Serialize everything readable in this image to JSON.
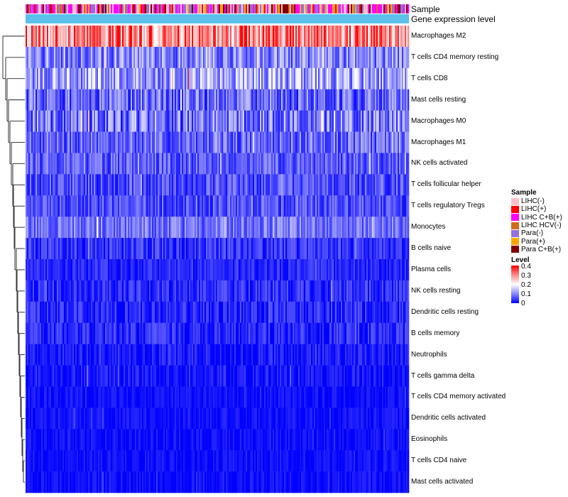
{
  "chart_data": {
    "type": "heatmap",
    "title": "",
    "annotation_rows": [
      "Sample",
      "Gene expression level"
    ],
    "rows": [
      "Macrophages M2",
      "T cells CD4 memory resting",
      "T cells CD8",
      "Mast cells resting",
      "Macrophages M0",
      "Macrophages M1",
      "NK cells activated",
      "T cells follicular helper",
      "T cells regulatory  Tregs",
      "Monocytes",
      "B cells naive",
      "Plasma cells",
      "NK cells resting",
      "Dendritic cells resting",
      "B cells memory",
      "Neutrophils",
      "T cells gamma delta",
      "T cells CD4 memory activated",
      "Dendritic cells activated",
      "Eosinophils",
      "T cells CD4 naive",
      "Mast cells activated"
    ],
    "row_mean_level": [
      0.3,
      0.1,
      0.13,
      0.08,
      0.09,
      0.08,
      0.07,
      0.06,
      0.06,
      0.09,
      0.04,
      0.03,
      0.035,
      0.03,
      0.03,
      0.02,
      0.015,
      0.012,
      0.012,
      0.012,
      0.01,
      0.01
    ],
    "row_spread": [
      0.12,
      0.07,
      0.08,
      0.07,
      0.08,
      0.06,
      0.05,
      0.05,
      0.05,
      0.05,
      0.04,
      0.03,
      0.04,
      0.04,
      0.04,
      0.03,
      0.03,
      0.02,
      0.02,
      0.02,
      0.02,
      0.02
    ],
    "n_samples": 270,
    "color_scale": {
      "title": "Level",
      "min": 0,
      "max": 0.4,
      "ticks": [
        "0.4",
        "0.3",
        "0.2",
        "0.1",
        "0"
      ],
      "low_color": "#0000ff",
      "mid_color": "#ffffff",
      "high_color": "#ff0000"
    },
    "sample_legend": {
      "title": "Sample",
      "items": [
        {
          "label": "LIHC(-)",
          "color": "#ffc0cb"
        },
        {
          "label": "LIHC(+)",
          "color": "#ff0000"
        },
        {
          "label": "LIHC C+B(+)",
          "color": "#ff00ff"
        },
        {
          "label": "LIHC HCV(-)",
          "color": "#d2691e"
        },
        {
          "label": "Para(-)",
          "color": "#9370db"
        },
        {
          "label": "Para(+)",
          "color": "#ffa500"
        },
        {
          "label": "Para C+B(+)",
          "color": "#800000"
        }
      ]
    },
    "gene_expression_color": "#5bc0eb",
    "legend_position": "right"
  }
}
